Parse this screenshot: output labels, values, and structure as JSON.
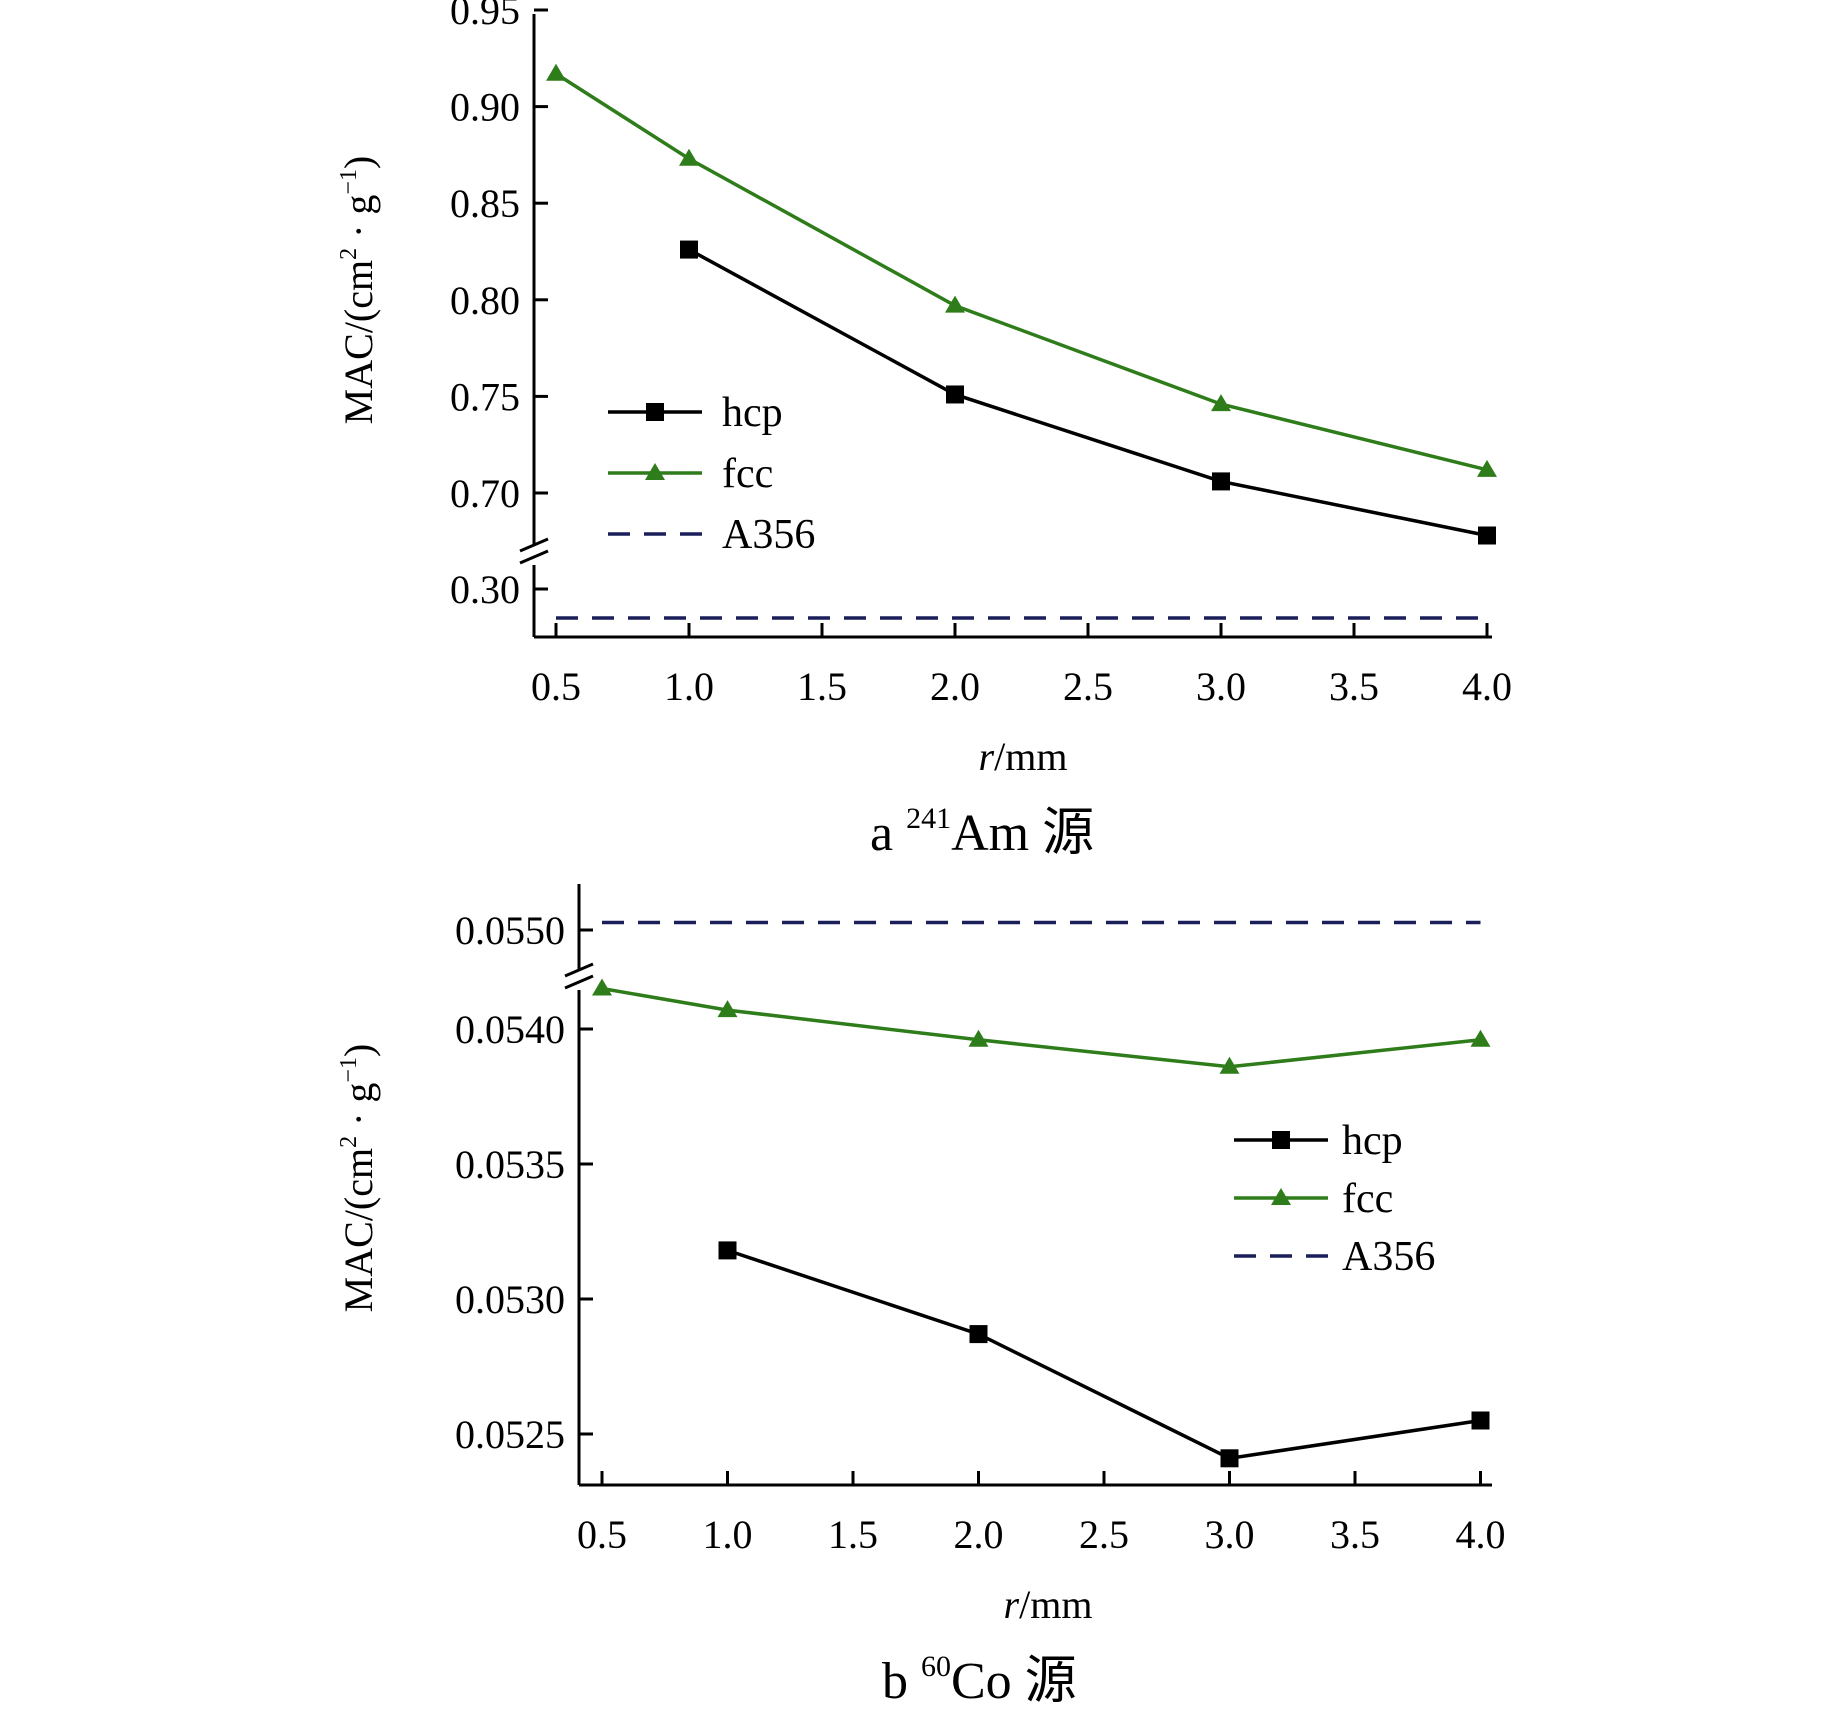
{
  "chart_data": [
    {
      "type": "line",
      "caption_prefix": "a",
      "caption_sup": "241",
      "caption_main": "Am 源",
      "xlabel_italic": "r",
      "xlabel_rest": "/mm",
      "ylabel_main": "MAC/(cm",
      "ylabel_sup1": "2",
      "ylabel_mid": " · g",
      "ylabel_sup2": "−1",
      "ylabel_end": ")",
      "x_ticks": [
        "0.5",
        "1.0",
        "1.5",
        "2.0",
        "2.5",
        "3.0",
        "3.5",
        "4.0"
      ],
      "y_ticks_upper": [
        "0.70",
        "0.75",
        "0.80",
        "0.85",
        "0.90",
        "0.95"
      ],
      "y_ticks_lower": [
        "0.30"
      ],
      "y_break": true,
      "ylim_upper": [
        0.66,
        0.95
      ],
      "ylim_lower": [
        0.28,
        0.31
      ],
      "series": [
        {
          "name": "hcp",
          "color": "#000000",
          "marker": "square",
          "dash": false,
          "x": [
            1.0,
            2.0,
            3.0,
            4.0
          ],
          "y": [
            0.826,
            0.751,
            0.706,
            0.678
          ]
        },
        {
          "name": "fcc",
          "color": "#2e7d1a",
          "marker": "triangle",
          "dash": false,
          "x": [
            0.5,
            1.0,
            2.0,
            3.0,
            4.0
          ],
          "y": [
            0.917,
            0.873,
            0.797,
            0.746,
            0.712
          ]
        },
        {
          "name": "A356",
          "color": "#1a1f5a",
          "marker": "none",
          "dash": true,
          "x": [
            0.5,
            4.0
          ],
          "y": [
            0.285,
            0.285
          ]
        }
      ],
      "legend": [
        "hcp",
        "fcc",
        "A356"
      ],
      "legend_position": "center-left"
    },
    {
      "type": "line",
      "caption_prefix": "b",
      "caption_sup": "60",
      "caption_main": "Co 源",
      "xlabel_italic": "r",
      "xlabel_rest": "/mm",
      "ylabel_main": "MAC/(cm",
      "ylabel_sup1": "2",
      "ylabel_mid": " · g",
      "ylabel_sup2": "−1",
      "ylabel_end": ")",
      "x_ticks": [
        "0.5",
        "1.0",
        "1.5",
        "2.0",
        "2.5",
        "3.0",
        "3.5",
        "4.0"
      ],
      "y_ticks_upper": [
        "0.0550"
      ],
      "y_ticks_lower": [
        "0.0525",
        "0.0530",
        "0.0535",
        "0.0540"
      ],
      "y_break": true,
      "series": [
        {
          "name": "hcp",
          "color": "#000000",
          "marker": "square",
          "dash": false,
          "x": [
            1.0,
            2.0,
            3.0,
            4.0
          ],
          "y": [
            0.05318,
            0.05287,
            0.05241,
            0.05255
          ]
        },
        {
          "name": "fcc",
          "color": "#2e7d1a",
          "marker": "triangle",
          "dash": false,
          "x": [
            0.5,
            1.0,
            2.0,
            3.0,
            4.0
          ],
          "y": [
            0.05415,
            0.05407,
            0.05396,
            0.05386,
            0.05396
          ]
        },
        {
          "name": "A356",
          "color": "#1a1f5a",
          "marker": "none",
          "dash": true,
          "x": [
            0.5,
            4.0
          ],
          "y": [
            0.05514,
            0.05514
          ]
        }
      ],
      "legend": [
        "hcp",
        "fcc",
        "A356"
      ],
      "legend_position": "center-right"
    }
  ]
}
